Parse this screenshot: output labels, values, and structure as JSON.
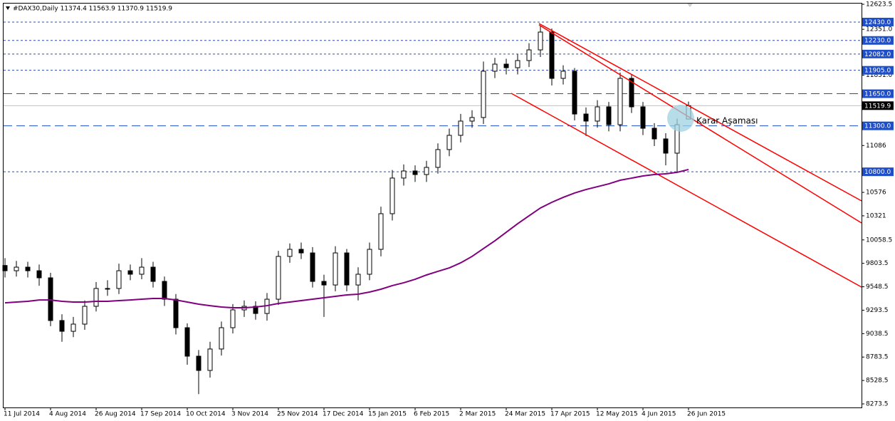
{
  "chart_data": {
    "type": "candlestick",
    "title": "#DAX30,Daily  11374.4 11563.9 11370.9 11519.9",
    "annotation": "Karar Aşaması",
    "categories": [
      "11 Jul 2014",
      null,
      null,
      null,
      "4 Aug 2014",
      null,
      null,
      null,
      "26 Aug 2014",
      null,
      null,
      null,
      "17 Sep 2014",
      null,
      null,
      null,
      "10 Oct 2014",
      null,
      null,
      null,
      "3 Nov 2014",
      null,
      null,
      null,
      "25 Nov 2014",
      null,
      null,
      null,
      "17 Dec 2014",
      null,
      null,
      null,
      "15 Jan 2015",
      null,
      null,
      null,
      "6 Feb 2015",
      null,
      null,
      null,
      "2 Mar 2015",
      null,
      null,
      null,
      "24 Mar 2015",
      null,
      null,
      null,
      "17 Apr 2015",
      null,
      null,
      null,
      "12 May 2015",
      null,
      null,
      null,
      "4 Jun 2015",
      null,
      null,
      null,
      "26 Jun 2015"
    ],
    "open": [
      9780,
      9723,
      9762,
      9723,
      9646,
      9181,
      9064,
      9142,
      9336,
      9530,
      9530,
      9723,
      9685,
      9762,
      9607,
      9413,
      9103,
      8793,
      8638,
      8871,
      9103,
      9297,
      9336,
      9258,
      9413,
      9879,
      9956,
      9917,
      9607,
      9568,
      9917,
      9568,
      9685,
      9956,
      10344,
      10732,
      10809,
      10770,
      10848,
      11042,
      11197,
      11352,
      11391,
      11895,
      11972,
      11933,
      12011,
      12127,
      12321,
      11817,
      11895,
      11429,
      11352,
      11507,
      11313,
      11817,
      11507,
      11274,
      11158,
      11003,
      11374.4
    ],
    "high": [
      9860,
      9830,
      9820,
      9790,
      9700,
      9250,
      9220,
      9400,
      9600,
      9620,
      9800,
      9790,
      9860,
      9820,
      9660,
      9470,
      9150,
      8860,
      8950,
      9170,
      9360,
      9400,
      9390,
      9480,
      9940,
      10020,
      10030,
      9980,
      9680,
      9990,
      9960,
      9760,
      10030,
      10420,
      10820,
      10880,
      10870,
      10920,
      11110,
      11270,
      11430,
      11470,
      12000,
      12040,
      12030,
      12080,
      12200,
      12390,
      12360,
      11960,
      11930,
      11500,
      11580,
      11560,
      11880,
      11860,
      11560,
      11330,
      11220,
      11380,
      11563.9
    ],
    "low": [
      9650,
      9660,
      9650,
      9560,
      9120,
      8950,
      9000,
      9080,
      9280,
      9450,
      9470,
      9620,
      9630,
      9540,
      9340,
      9030,
      8700,
      8380,
      8560,
      8800,
      9040,
      9220,
      9190,
      9180,
      9350,
      9810,
      9850,
      9540,
      9220,
      9500,
      9500,
      9400,
      9620,
      9880,
      10270,
      10650,
      10690,
      10690,
      10780,
      10970,
      11120,
      11280,
      11320,
      11820,
      11860,
      11860,
      11940,
      12050,
      11740,
      11750,
      11360,
      11190,
      11280,
      11240,
      11240,
      11440,
      11200,
      11080,
      10870,
      10800,
      11370.9
    ],
    "close": [
      9723,
      9762,
      9723,
      9646,
      9181,
      9064,
      9142,
      9336,
      9530,
      9530,
      9723,
      9685,
      9762,
      9607,
      9413,
      9103,
      8793,
      8638,
      8871,
      9103,
      9297,
      9336,
      9258,
      9413,
      9879,
      9956,
      9917,
      9607,
      9568,
      9917,
      9568,
      9685,
      9956,
      10344,
      10732,
      10809,
      10770,
      10848,
      11042,
      11197,
      11352,
      11391,
      11895,
      11972,
      11933,
      12011,
      12127,
      12321,
      11817,
      11895,
      11429,
      11352,
      11507,
      11313,
      11817,
      11507,
      11274,
      11158,
      11003,
      11313,
      11519.9
    ],
    "moving_average": {
      "color": "#800080",
      "values": [
        9374,
        9382,
        9390,
        9405,
        9405,
        9390,
        9382,
        9382,
        9390,
        9390,
        9398,
        9405,
        9413,
        9421,
        9421,
        9405,
        9382,
        9359,
        9343,
        9328,
        9320,
        9320,
        9328,
        9343,
        9367,
        9382,
        9398,
        9413,
        9429,
        9444,
        9460,
        9468,
        9491,
        9522,
        9561,
        9592,
        9630,
        9677,
        9716,
        9754,
        9809,
        9879,
        9964,
        10049,
        10142,
        10235,
        10321,
        10406,
        10468,
        10522,
        10569,
        10607,
        10638,
        10669,
        10708,
        10731,
        10755,
        10770,
        10778,
        10794,
        10825
      ]
    },
    "ylim": [
      8273.5,
      12623.5
    ],
    "yticks": [
      8273.5,
      8528.5,
      8783.5,
      9038.5,
      9293.5,
      9548.5,
      9803.5,
      10058.5,
      10321,
      10576,
      11086,
      {
        "value": 11851,
        "label": "11851.0"
      },
      {
        "value": 12351,
        "label": "12351.0"
      },
      12623.5
    ],
    "levels": [
      {
        "value": 12430,
        "label": "12430.0",
        "style": "dotted"
      },
      {
        "value": 12230,
        "label": "12230.0",
        "style": "dotted"
      },
      {
        "value": 12082,
        "label": "12082.0",
        "style": "dotted"
      },
      {
        "value": 11905,
        "label": "11905.0",
        "style": "dotted"
      },
      {
        "value": 11650,
        "label": "11650.0",
        "style": "dashed"
      },
      {
        "value": 11519.9,
        "label": "11519.9",
        "style": "solid"
      },
      {
        "value": 11300,
        "label": "11300.0",
        "style": "dashed"
      },
      {
        "value": 10800,
        "label": "10800.0",
        "style": "dotted"
      }
    ]
  }
}
